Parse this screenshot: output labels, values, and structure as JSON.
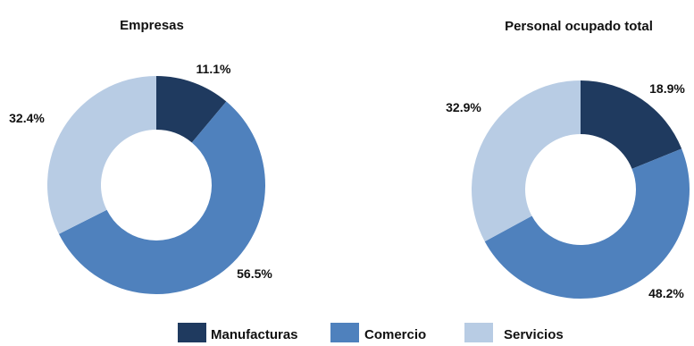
{
  "legend": [
    {
      "label": "Manufacturas",
      "color": "#1f3a5f"
    },
    {
      "label": "Comercio",
      "color": "#4f81bd"
    },
    {
      "label": "Servicios",
      "color": "#b8cce4"
    }
  ],
  "chart_data": [
    {
      "type": "pie",
      "donut": true,
      "title": "Empresas",
      "categories": [
        "Manufacturas",
        "Comercio",
        "Servicios"
      ],
      "values": [
        11.1,
        56.5,
        32.4
      ],
      "labels": [
        "11.1%",
        "56.5%",
        "32.4%"
      ],
      "colors": [
        "#1f3a5f",
        "#4f81bd",
        "#b8cce4"
      ],
      "legend_position": "bottom"
    },
    {
      "type": "pie",
      "donut": true,
      "title": "Personal ocupado total",
      "categories": [
        "Manufacturas",
        "Comercio",
        "Servicios"
      ],
      "values": [
        18.9,
        48.2,
        32.9
      ],
      "labels": [
        "18.9%",
        "48.2%",
        "32.9%"
      ],
      "colors": [
        "#1f3a5f",
        "#4f81bd",
        "#b8cce4"
      ],
      "legend_position": "bottom"
    }
  ]
}
